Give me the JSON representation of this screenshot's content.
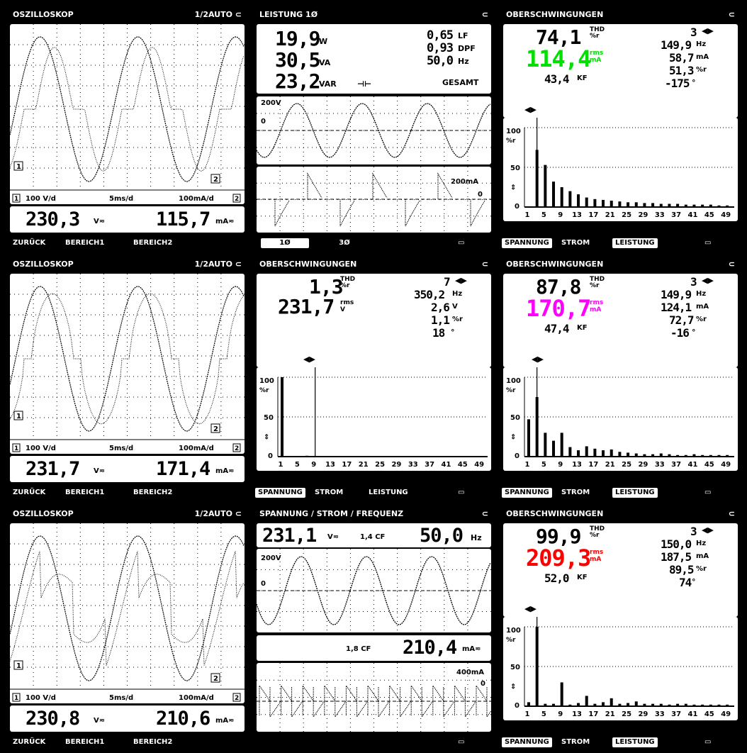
{
  "osc_title": "OSZILLOSKOP",
  "osc_mode": "1/2AUTO",
  "osc_scale_v": "100 V/d",
  "osc_scale_t": "5ms/d",
  "osc_scale_i": "100mA/d",
  "osc1_v": "230,3",
  "osc1_i": "115,7",
  "osc2_v": "231,7",
  "osc2_i": "171,4",
  "osc3_v": "230,8",
  "osc3_i": "210,6",
  "unit_v": "V≂",
  "unit_ma": "mA≂",
  "softkeys_osc": [
    "ZURÜCK",
    "BEREICH1",
    "BEREICH2"
  ],
  "power": {
    "title": "LEISTUNG 1Ø",
    "w": "19,9",
    "w_u": "W",
    "va": "30,5",
    "va_u": "VA",
    "var": "23,2",
    "var_u": "VAR",
    "lf": "0,65",
    "lf_u": "LF",
    "dpf": "0,93",
    "dpf_u": "DPF",
    "hz": "50,0",
    "hz_u": "Hz",
    "total": "GESAMT",
    "v_scale": "200V",
    "zero": "0",
    "i_scale": "200mA",
    "tabs": [
      "1Ø",
      "3Ø"
    ]
  },
  "harm_v": {
    "title": "OBERSCHWINGUNGEN",
    "thd": "1,3",
    "order": "7",
    "freq": "350,2",
    "freq_u": "Hz",
    "rms": "231,7",
    "amp": "2,6",
    "amp_u": "V",
    "pct": "1,1",
    "pct_u": "%r",
    "phase": "18"
  },
  "harm_i1": {
    "title": "OBERSCHWINGUNGEN",
    "thd": "74,1",
    "rms": "114,4",
    "kf": "43,4",
    "order": "3",
    "freq": "149,9",
    "amp": "58,7",
    "pct": "51,3",
    "phase": "-175",
    "color": "#00e000"
  },
  "harm_i2": {
    "title": "OBERSCHWINGUNGEN",
    "thd": "87,8",
    "rms": "170,7",
    "kf": "47,4",
    "order": "3",
    "freq": "149,9",
    "amp": "124,1",
    "pct": "72,7",
    "phase": "-16",
    "color": "#ff00ff"
  },
  "harm_i3": {
    "title": "OBERSCHWINGUNGEN",
    "thd": "99,9",
    "rms": "209,3",
    "kf": "52,0",
    "order": "3",
    "freq": "150,0",
    "amp": "187,5",
    "pct": "89,5",
    "phase": "74",
    "color": "#ff0000"
  },
  "harm_labels": {
    "thd": "THD",
    "pct_r": "%r",
    "rms": "rms",
    "ma": "mA",
    "v": "V",
    "kf": "KF",
    "hz": "Hz",
    "deg": "°",
    "ylab100": "100",
    "ylab50": "50",
    "ylab0": "0",
    "ypct": "%r",
    "xticks": [
      "1",
      "5",
      "9",
      "13",
      "17",
      "21",
      "25",
      "29",
      "33",
      "37",
      "41",
      "45",
      "49"
    ]
  },
  "softkeys_harm": [
    "SPANNUNG",
    "STROM",
    "LEISTUNG"
  ],
  "vif": {
    "title": "SPANNUNG / STROM / FREQUENZ",
    "v": "231,1",
    "v_u": "V≂",
    "vcf": "1,4 CF",
    "hz": "50,0",
    "hz_u": "Hz",
    "i": "210,4",
    "i_u": "mA≂",
    "icf": "1,8 CF",
    "v_scale": "200V",
    "zero": "0",
    "i_scale": "400mA"
  },
  "spectra": {
    "i1": [
      0,
      72,
      53,
      32,
      25,
      20,
      16,
      12,
      10,
      9,
      8,
      7,
      6,
      6,
      5,
      5,
      4,
      4,
      4,
      3,
      3,
      3,
      3,
      2,
      2
    ],
    "v": [
      100,
      0,
      0,
      1.1,
      0,
      0,
      0,
      0,
      0,
      0,
      0,
      0,
      0,
      0,
      0,
      0,
      0,
      0,
      0,
      0,
      0,
      0,
      0,
      0,
      0
    ],
    "i2": [
      47,
      75,
      30,
      20,
      30,
      12,
      8,
      13,
      10,
      8,
      9,
      6,
      5,
      4,
      3,
      3,
      4,
      3,
      2,
      2,
      3,
      2,
      2,
      2,
      2
    ],
    "i3": [
      5,
      100,
      3,
      3,
      30,
      2,
      4,
      13,
      3,
      5,
      10,
      3,
      4,
      6,
      3,
      3,
      3,
      2,
      3,
      3,
      2,
      2,
      2,
      2,
      2
    ]
  }
}
